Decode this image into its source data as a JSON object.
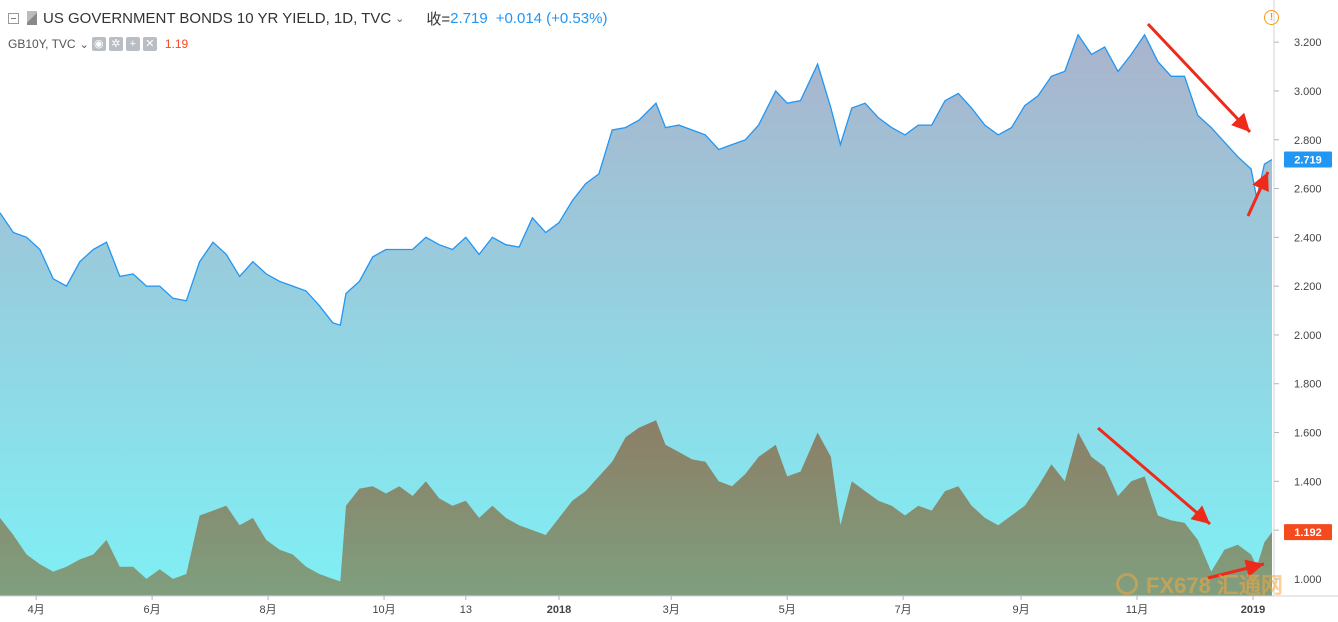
{
  "header": {
    "title": "US GOVERNMENT BONDS 10 YR YIELD, 1D, TVC",
    "close_label": "收=",
    "close_value": "2.719",
    "change": "+0.014 (+0.53%)",
    "overlay_symbol": "GB10Y, TVC",
    "overlay_value": "1.19",
    "ctrl_icons": [
      "eye-icon",
      "gear-icon",
      "plus-icon",
      "close-icon"
    ]
  },
  "watermark": "FX678 汇通网",
  "colors": {
    "us_line": "#2196f3",
    "us_fill_top": "#aab3cc",
    "us_fill_bottom": "#7ff0f5",
    "gb_fill_top": "#8c7e66",
    "gb_fill_bottom": "#7f9f7e",
    "us_badge": "#2196f3",
    "gb_badge": "#f44a1d",
    "arrow": "#ee2a1a",
    "warning": "#f39a1c"
  },
  "chart_data": {
    "type": "area",
    "y_ticks": [
      "3.200",
      "3.000",
      "2.800",
      "2.600",
      "2.400",
      "2.200",
      "2.000",
      "1.800",
      "1.600",
      "1.400",
      "1.200",
      "1.000"
    ],
    "ylim": [
      0.93,
      3.34
    ],
    "x_ticks": [
      "4月",
      "6月",
      "8月",
      "10月",
      "13",
      "2018",
      "3月",
      "5月",
      "7月",
      "9月",
      "11月",
      "2019"
    ],
    "x_ticks_bold": [
      "2018",
      "2019"
    ],
    "xlim": [
      "2017-03-13",
      "2019-01-11"
    ],
    "x_tick_dates": [
      "2017-04-01",
      "2017-06-01",
      "2017-08-01",
      "2017-10-01",
      "2017-11-13",
      "2018-01-01",
      "2018-03-01",
      "2018-05-01",
      "2018-07-01",
      "2018-09-01",
      "2018-11-01",
      "2019-01-01"
    ],
    "grid": false,
    "series": [
      {
        "name": "US GOVERNMENT BONDS 10 YR YIELD",
        "last_value": "2.719",
        "dates": [
          "2017-03-13",
          "2017-03-20",
          "2017-03-27",
          "2017-04-03",
          "2017-04-10",
          "2017-04-17",
          "2017-04-24",
          "2017-05-01",
          "2017-05-08",
          "2017-05-15",
          "2017-05-22",
          "2017-05-29",
          "2017-06-05",
          "2017-06-12",
          "2017-06-19",
          "2017-06-26",
          "2017-07-03",
          "2017-07-10",
          "2017-07-17",
          "2017-07-24",
          "2017-07-31",
          "2017-08-07",
          "2017-08-14",
          "2017-08-21",
          "2017-08-28",
          "2017-09-04",
          "2017-09-08",
          "2017-09-11",
          "2017-09-18",
          "2017-09-25",
          "2017-10-02",
          "2017-10-09",
          "2017-10-16",
          "2017-10-23",
          "2017-10-30",
          "2017-11-06",
          "2017-11-13",
          "2017-11-20",
          "2017-11-27",
          "2017-12-04",
          "2017-12-11",
          "2017-12-18",
          "2017-12-25",
          "2018-01-01",
          "2018-01-08",
          "2018-01-15",
          "2018-01-22",
          "2018-01-29",
          "2018-02-05",
          "2018-02-12",
          "2018-02-21",
          "2018-02-26",
          "2018-03-05",
          "2018-03-12",
          "2018-03-19",
          "2018-03-26",
          "2018-04-02",
          "2018-04-09",
          "2018-04-16",
          "2018-04-25",
          "2018-05-01",
          "2018-05-08",
          "2018-05-17",
          "2018-05-24",
          "2018-05-29",
          "2018-06-04",
          "2018-06-11",
          "2018-06-18",
          "2018-06-25",
          "2018-07-02",
          "2018-07-09",
          "2018-07-16",
          "2018-07-23",
          "2018-07-30",
          "2018-08-06",
          "2018-08-13",
          "2018-08-20",
          "2018-08-27",
          "2018-09-03",
          "2018-09-10",
          "2018-09-17",
          "2018-09-24",
          "2018-10-01",
          "2018-10-08",
          "2018-10-15",
          "2018-10-22",
          "2018-10-29",
          "2018-11-05",
          "2018-11-12",
          "2018-11-19",
          "2018-11-26",
          "2018-12-03",
          "2018-12-10",
          "2018-12-17",
          "2018-12-24",
          "2018-12-31",
          "2019-01-03",
          "2019-01-07",
          "2019-01-11"
        ],
        "values": [
          2.5,
          2.42,
          2.4,
          2.35,
          2.23,
          2.2,
          2.3,
          2.35,
          2.38,
          2.24,
          2.25,
          2.2,
          2.2,
          2.15,
          2.14,
          2.3,
          2.38,
          2.33,
          2.24,
          2.3,
          2.25,
          2.22,
          2.2,
          2.18,
          2.12,
          2.05,
          2.04,
          2.17,
          2.22,
          2.32,
          2.35,
          2.35,
          2.35,
          2.4,
          2.37,
          2.35,
          2.4,
          2.33,
          2.4,
          2.37,
          2.36,
          2.48,
          2.42,
          2.46,
          2.55,
          2.62,
          2.66,
          2.84,
          2.85,
          2.88,
          2.95,
          2.85,
          2.86,
          2.84,
          2.82,
          2.76,
          2.78,
          2.8,
          2.86,
          3.0,
          2.95,
          2.96,
          3.11,
          2.93,
          2.78,
          2.93,
          2.95,
          2.89,
          2.85,
          2.82,
          2.86,
          2.86,
          2.96,
          2.99,
          2.93,
          2.86,
          2.82,
          2.85,
          2.94,
          2.98,
          3.06,
          3.08,
          3.23,
          3.15,
          3.18,
          3.08,
          3.15,
          3.23,
          3.12,
          3.06,
          3.06,
          2.9,
          2.85,
          2.79,
          2.73,
          2.68,
          2.56,
          2.7,
          2.719
        ]
      },
      {
        "name": "GB10Y",
        "last_value": "1.192",
        "dates": [
          "2017-03-13",
          "2017-03-20",
          "2017-03-27",
          "2017-04-03",
          "2017-04-10",
          "2017-04-17",
          "2017-04-24",
          "2017-05-01",
          "2017-05-08",
          "2017-05-15",
          "2017-05-22",
          "2017-05-29",
          "2017-06-05",
          "2017-06-12",
          "2017-06-19",
          "2017-06-26",
          "2017-07-03",
          "2017-07-10",
          "2017-07-17",
          "2017-07-24",
          "2017-07-31",
          "2017-08-07",
          "2017-08-14",
          "2017-08-21",
          "2017-08-28",
          "2017-09-04",
          "2017-09-08",
          "2017-09-11",
          "2017-09-18",
          "2017-09-25",
          "2017-10-02",
          "2017-10-09",
          "2017-10-16",
          "2017-10-23",
          "2017-10-30",
          "2017-11-06",
          "2017-11-13",
          "2017-11-20",
          "2017-11-27",
          "2017-12-04",
          "2017-12-11",
          "2017-12-18",
          "2017-12-25",
          "2018-01-01",
          "2018-01-08",
          "2018-01-15",
          "2018-01-22",
          "2018-01-29",
          "2018-02-05",
          "2018-02-12",
          "2018-02-21",
          "2018-02-26",
          "2018-03-05",
          "2018-03-12",
          "2018-03-19",
          "2018-03-26",
          "2018-04-02",
          "2018-04-09",
          "2018-04-16",
          "2018-04-25",
          "2018-05-01",
          "2018-05-08",
          "2018-05-17",
          "2018-05-24",
          "2018-05-29",
          "2018-06-04",
          "2018-06-11",
          "2018-06-18",
          "2018-06-25",
          "2018-07-02",
          "2018-07-09",
          "2018-07-16",
          "2018-07-23",
          "2018-07-30",
          "2018-08-06",
          "2018-08-13",
          "2018-08-20",
          "2018-08-27",
          "2018-09-03",
          "2018-09-10",
          "2018-09-17",
          "2018-09-24",
          "2018-10-01",
          "2018-10-08",
          "2018-10-15",
          "2018-10-22",
          "2018-10-29",
          "2018-11-05",
          "2018-11-12",
          "2018-11-19",
          "2018-11-26",
          "2018-12-03",
          "2018-12-10",
          "2018-12-17",
          "2018-12-24",
          "2018-12-31",
          "2019-01-03",
          "2019-01-07",
          "2019-01-11"
        ],
        "values": [
          1.25,
          1.18,
          1.1,
          1.06,
          1.03,
          1.05,
          1.08,
          1.1,
          1.16,
          1.05,
          1.05,
          1.0,
          1.04,
          1.0,
          1.02,
          1.26,
          1.28,
          1.3,
          1.22,
          1.25,
          1.16,
          1.12,
          1.1,
          1.05,
          1.02,
          1.0,
          0.99,
          1.3,
          1.37,
          1.38,
          1.35,
          1.38,
          1.34,
          1.4,
          1.33,
          1.3,
          1.32,
          1.25,
          1.3,
          1.25,
          1.22,
          1.2,
          1.18,
          1.25,
          1.32,
          1.36,
          1.42,
          1.48,
          1.58,
          1.62,
          1.65,
          1.55,
          1.52,
          1.49,
          1.48,
          1.4,
          1.38,
          1.43,
          1.5,
          1.55,
          1.42,
          1.44,
          1.6,
          1.5,
          1.22,
          1.4,
          1.36,
          1.32,
          1.3,
          1.26,
          1.3,
          1.28,
          1.36,
          1.38,
          1.3,
          1.25,
          1.22,
          1.26,
          1.3,
          1.38,
          1.47,
          1.4,
          1.6,
          1.5,
          1.46,
          1.34,
          1.4,
          1.42,
          1.26,
          1.24,
          1.23,
          1.16,
          1.03,
          1.12,
          1.14,
          1.1,
          1.05,
          1.15,
          1.192
        ]
      }
    ]
  }
}
